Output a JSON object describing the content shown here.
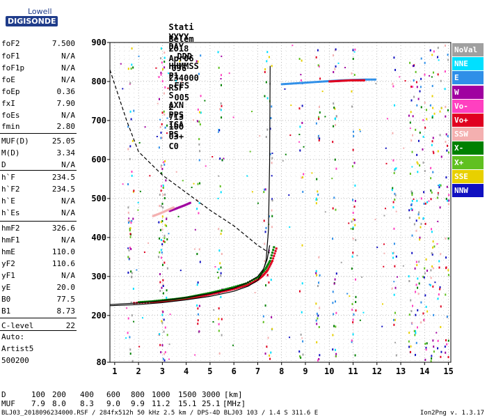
{
  "logo": {
    "line1": "Lowell",
    "line2": "DIGISONDE"
  },
  "header": {
    "labels": [
      "Stati",
      "YYYY",
      "DAY",
      "DDD",
      "HHMMSS",
      "P1",
      "FFS",
      "S",
      "AXN",
      "PPS",
      "IGA",
      "PS"
    ],
    "values": [
      "Belem",
      "2018",
      "Apr06",
      "096",
      "234000",
      "RSF",
      "005",
      "2",
      "713",
      "100",
      "03+",
      "C0"
    ]
  },
  "params": [
    {
      "name": "foF2",
      "value": "7.500"
    },
    {
      "name": "foF1",
      "value": "N/A"
    },
    {
      "name": "foF1p",
      "value": "N/A"
    },
    {
      "name": "foE",
      "value": "N/A"
    },
    {
      "name": "foEp",
      "value": "0.36"
    },
    {
      "name": "fxI",
      "value": "7.90"
    },
    {
      "name": "foEs",
      "value": "N/A"
    },
    {
      "name": "fmin",
      "value": "2.80"
    },
    {
      "name": "MUF(D)",
      "value": "25.05"
    },
    {
      "name": "M(D)",
      "value": "3.34"
    },
    {
      "name": "D",
      "value": "N/A"
    },
    {
      "name": "h`F",
      "value": "234.5"
    },
    {
      "name": "h`F2",
      "value": "234.5"
    },
    {
      "name": "h`E",
      "value": "N/A"
    },
    {
      "name": "h`Es",
      "value": "N/A"
    },
    {
      "name": "hmF2",
      "value": "326.6"
    },
    {
      "name": "hmF1",
      "value": "N/A"
    },
    {
      "name": "hmE",
      "value": "110.0"
    },
    {
      "name": "yF2",
      "value": "110.6"
    },
    {
      "name": "yF1",
      "value": "N/A"
    },
    {
      "name": "yE",
      "value": "20.0"
    },
    {
      "name": "B0",
      "value": "77.5"
    },
    {
      "name": "B1",
      "value": "8.73"
    },
    {
      "name": "C-level",
      "value": "22"
    }
  ],
  "auto": {
    "line1": "Auto:",
    "line2": "Artist5",
    "line3": "500200"
  },
  "legend": [
    {
      "label": "NoVal",
      "bg": "#a0a0a0",
      "fg": "#ffffff"
    },
    {
      "label": "NNE",
      "bg": "#00e0ff",
      "fg": "#ffffff"
    },
    {
      "label": "E",
      "bg": "#2f8fe8",
      "fg": "#ffffff"
    },
    {
      "label": "W",
      "bg": "#a000a0",
      "fg": "#ffffff"
    },
    {
      "label": "Vo-",
      "bg": "#ff40c0",
      "fg": "#ffffff"
    },
    {
      "label": "Vo+",
      "bg": "#e00020",
      "fg": "#ffffff"
    },
    {
      "label": "SSW",
      "bg": "#f4b0b0",
      "fg": "#ffffff"
    },
    {
      "label": "X-",
      "bg": "#008000",
      "fg": "#ffffff"
    },
    {
      "label": "X+",
      "bg": "#60c020",
      "fg": "#ffffff"
    },
    {
      "label": "SSE",
      "bg": "#e8d000",
      "fg": "#ffffff"
    },
    {
      "label": "NNW",
      "bg": "#1010c0",
      "fg": "#ffffff"
    }
  ],
  "footer": {
    "d_label": "D",
    "d_values": [
      "100",
      "200",
      "400",
      "600",
      "800",
      "1000",
      "1500",
      "3000"
    ],
    "d_unit": "[km]",
    "muf_label": "MUF",
    "muf_values": [
      "7.9",
      "8.0",
      "8.3",
      "9.0",
      "9.9",
      "11.2",
      "15.1",
      "25.1"
    ],
    "muf_unit": "[MHz]",
    "file_info": "BLJ03_2018096234000.RSF / 284fx512h 50 kHz 2.5 km / DPS-4D BLJ03 103 / 1.4 S 311.6 E",
    "version": "Ion2Png v. 1.3.17"
  },
  "chart_data": {
    "type": "scatter",
    "x_ticks": [
      1,
      2,
      3,
      4,
      5,
      6,
      7,
      8,
      9,
      10,
      11,
      12,
      13,
      14,
      15
    ],
    "y_ticks": [
      80,
      200,
      300,
      400,
      500,
      600,
      700,
      800,
      900
    ],
    "xlim": [
      0.8,
      15.1
    ],
    "ylim": [
      80,
      900
    ],
    "grid": "dotted",
    "legend_placement": "right",
    "traces": {
      "virtual_height_trace": {
        "color": "#000000",
        "x": [
          0.8,
          2.0,
          3.0,
          4.0,
          5.0,
          6.0,
          6.6,
          7.0,
          7.2,
          7.35,
          7.45,
          7.5,
          7.52
        ],
        "y": [
          225,
          228,
          233,
          240,
          249,
          262,
          275,
          290,
          310,
          340,
          420,
          600,
          840
        ]
      },
      "true_height_profile": {
        "color": "#000000",
        "x": [
          0.8,
          2.0,
          3.0,
          4.0,
          5.0,
          6.0,
          6.6,
          7.0,
          7.25,
          7.4,
          7.5
        ],
        "y": [
          228,
          232,
          238,
          246,
          256,
          270,
          285,
          300,
          320,
          345,
          380
        ]
      },
      "muf_curve_dashed": {
        "color": "#000000",
        "x": [
          0.8,
          1.5,
          2.0,
          3.0,
          4.0,
          5.0,
          6.0,
          7.0,
          7.5
        ],
        "y": [
          830,
          700,
          620,
          560,
          515,
          470,
          430,
          380,
          360
        ]
      },
      "o_trace": {
        "color": "#e00020",
        "x": [
          1.8,
          2.5,
          3.0,
          3.5,
          4.0,
          4.5,
          5.0,
          5.5,
          6.0,
          6.5,
          6.8,
          7.0,
          7.2,
          7.4,
          7.6,
          7.8
        ],
        "y": [
          232,
          234,
          236,
          239,
          243,
          248,
          254,
          261,
          268,
          277,
          285,
          292,
          302,
          316,
          340,
          378
        ]
      },
      "x_trace": {
        "color": "#008000",
        "x": [
          2.0,
          2.5,
          3.0,
          3.5,
          4.0,
          4.5,
          5.0,
          5.5,
          6.0,
          6.5,
          7.0,
          7.3,
          7.5,
          7.7
        ],
        "y": [
          234,
          236,
          239,
          242,
          246,
          252,
          258,
          265,
          273,
          282,
          298,
          318,
          340,
          382
        ]
      },
      "high_echo_trace": {
        "color": "#2f8fe8",
        "x": [
          8.0,
          8.5,
          9.0,
          9.5,
          10.0,
          10.5,
          11.0,
          11.5,
          12.0
        ],
        "y": [
          793,
          795,
          797,
          799,
          801,
          803,
          804,
          805,
          805
        ]
      },
      "high_echo_red": {
        "color": "#e00020",
        "x": [
          10.0,
          10.3,
          10.6,
          10.9,
          11.2,
          11.5
        ],
        "y": [
          800,
          801,
          802,
          803,
          803,
          803
        ]
      },
      "spread_trace_magenta": {
        "color": "#a000a0",
        "x": [
          3.3,
          3.6,
          3.9,
          4.2
        ],
        "y": [
          468,
          475,
          482,
          490
        ]
      },
      "spread_trace_pink": {
        "color": "#f4b0b0",
        "x": [
          2.6,
          2.9,
          3.2,
          3.5
        ],
        "y": [
          455,
          462,
          470,
          478
        ]
      }
    }
  }
}
